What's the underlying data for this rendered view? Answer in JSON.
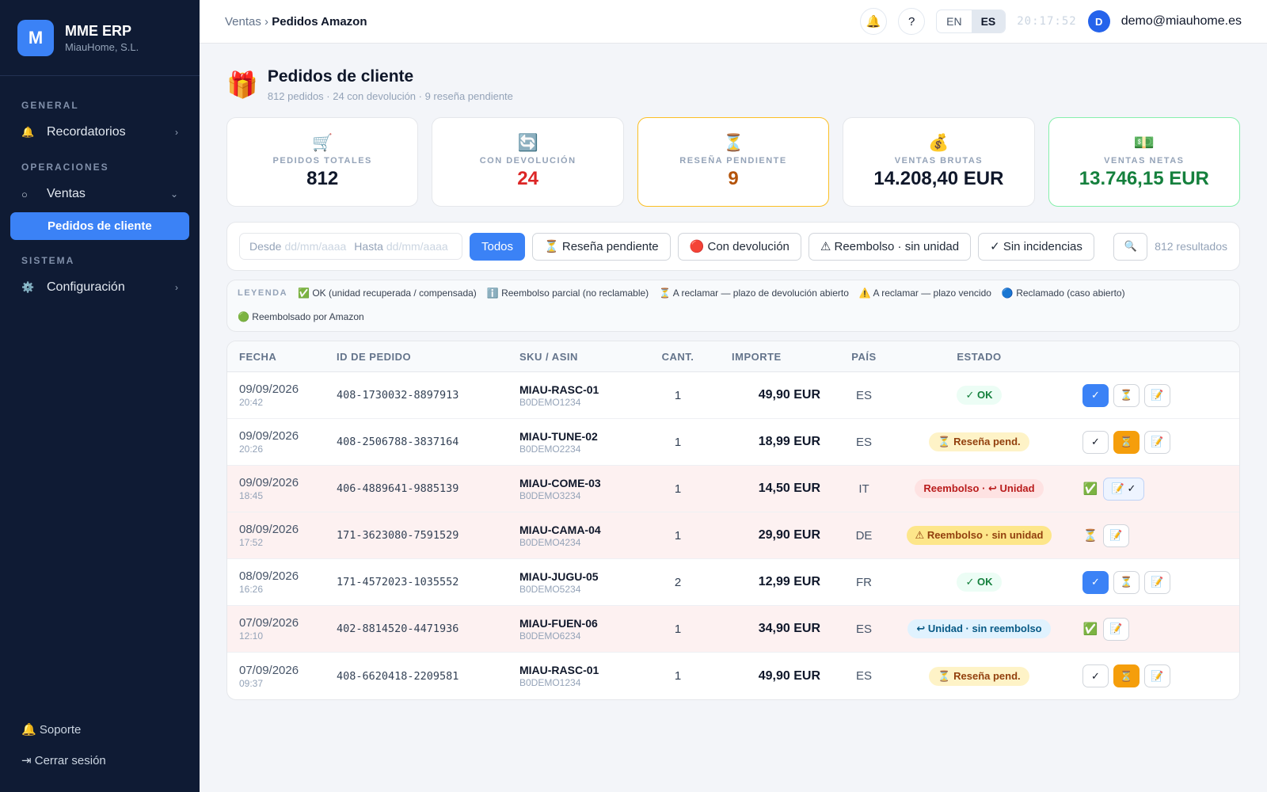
{
  "brand": {
    "logo": "M",
    "name": "MME ERP",
    "company": "MiauHome, S.L."
  },
  "sidebar": {
    "general": "GENERAL",
    "reminders": {
      "icon": "🔔",
      "label": "Recordatorios",
      "chev": "›"
    },
    "operations": "OPERACIONES",
    "sales": {
      "icon": "○",
      "label": "Ventas",
      "chev": "⌄"
    },
    "orders": "Pedidos de cliente",
    "system": "SISTEMA",
    "config": {
      "icon": "⚙️",
      "label": "Configuración",
      "chev": "›"
    },
    "support": "🔔 Soporte",
    "logout": "⇥ Cerrar sesión"
  },
  "topbar": {
    "crumb_parent": "Ventas",
    "crumb_sep": " › ",
    "crumb_current": "Pedidos Amazon",
    "bell": "🔔",
    "help": "?",
    "lang_en": "EN",
    "lang_es": "ES",
    "clock": "20:17:52",
    "avatar": "D",
    "email": "demo@miauhome.es"
  },
  "page": {
    "icon": "🎁",
    "title": "Pedidos de cliente",
    "subtitle": "812 pedidos · 24 con devolución · 9 reseña pendiente"
  },
  "kpis": [
    {
      "icon": "🛒",
      "label": "PEDIDOS TOTALES",
      "value": "812",
      "color": "#0f172a"
    },
    {
      "icon": "🔄",
      "label": "CON DEVOLUCIÓN",
      "value": "24",
      "color": "#dc2626"
    },
    {
      "icon": "⏳",
      "label": "RESEÑA PENDIENTE",
      "value": "9",
      "color": "#b45309"
    },
    {
      "icon": "💰",
      "label": "VENTAS BRUTAS",
      "value": "14.208,40 EUR",
      "color": "#0f172a"
    },
    {
      "icon": "💵",
      "label": "VENTAS NETAS",
      "value": "13.746,15 EUR",
      "color": "#15803d"
    }
  ],
  "filters": {
    "from_label": "Desde",
    "from_ph": "dd/mm/aaaa",
    "to_label": "Hasta",
    "to_ph": "dd/mm/aaaa",
    "all": "Todos",
    "review": "⏳ Reseña pendiente",
    "returns": "🔴 Con devolución",
    "refund": "⚠ Reembolso · sin unidad",
    "clean": "✓ Sin incidencias",
    "search_icon": "🔍",
    "results": "812 resultados"
  },
  "legend": {
    "title": "LEYENDA",
    "items": [
      "✅ OK (unidad recuperada / compensada)",
      "ℹ️ Reembolso parcial (no reclamable)",
      "⏳ A reclamar — plazo de devolución abierto",
      "⚠️ A reclamar — plazo vencido",
      "🔵 Reclamado (caso abierto)",
      "🟢 Reembolsado por Amazon"
    ]
  },
  "table": {
    "headers": {
      "date": "FECHA",
      "order": "ID DE PEDIDO",
      "sku": "SKU / ASIN",
      "qty": "CANT.",
      "amount": "IMPORTE",
      "country": "PAÍS",
      "status": "ESTADO"
    },
    "rows": [
      {
        "date": "09/09/2026",
        "time": "20:42",
        "order": "408-1730032-8897913",
        "sku": "MIAU-RASC-01",
        "asin": "B0DEMO1234",
        "qty": "1",
        "amount": "49,90 EUR",
        "country": "ES",
        "status": "✓ OK",
        "kind": "ok",
        "actions": [
          {
            "t": "✓",
            "s": "blue"
          },
          {
            "t": "⏳",
            "s": ""
          },
          {
            "t": "📝",
            "s": ""
          }
        ]
      },
      {
        "date": "09/09/2026",
        "time": "20:26",
        "order": "408-2506788-3837164",
        "sku": "MIAU-TUNE-02",
        "asin": "B0DEMO2234",
        "qty": "1",
        "amount": "18,99 EUR",
        "country": "ES",
        "status": "⏳ Reseña pend.",
        "kind": "rev",
        "actions": [
          {
            "t": "✓",
            "s": ""
          },
          {
            "t": "⏳",
            "s": "orange"
          },
          {
            "t": "📝",
            "s": ""
          }
        ]
      },
      {
        "date": "09/09/2026",
        "time": "18:45",
        "order": "406-4889641-9885139",
        "sku": "MIAU-COME-03",
        "asin": "B0DEMO3234",
        "qty": "1",
        "amount": "14,50 EUR",
        "country": "IT",
        "status": "Reembolso · ↩ Unidad",
        "kind": "red",
        "pink": true,
        "actions": [
          {
            "t": "✅",
            "s": "plain"
          },
          {
            "t": "📝 ✓",
            "s": "wide"
          }
        ]
      },
      {
        "date": "08/09/2026",
        "time": "17:52",
        "order": "171-3623080-7591529",
        "sku": "MIAU-CAMA-04",
        "asin": "B0DEMO4234",
        "qty": "1",
        "amount": "29,90 EUR",
        "country": "DE",
        "status": "⚠ Reembolso · sin unidad",
        "kind": "warn",
        "pink": true,
        "actions": [
          {
            "t": "⏳",
            "s": "plain"
          },
          {
            "t": "📝",
            "s": ""
          }
        ]
      },
      {
        "date": "08/09/2026",
        "time": "16:26",
        "order": "171-4572023-1035552",
        "sku": "MIAU-JUGU-05",
        "asin": "B0DEMO5234",
        "qty": "2",
        "amount": "12,99 EUR",
        "country": "FR",
        "status": "✓ OK",
        "kind": "ok",
        "actions": [
          {
            "t": "✓",
            "s": "blue"
          },
          {
            "t": "⏳",
            "s": ""
          },
          {
            "t": "📝",
            "s": ""
          }
        ]
      },
      {
        "date": "07/09/2026",
        "time": "12:10",
        "order": "402-8814520-4471936",
        "sku": "MIAU-FUEN-06",
        "asin": "B0DEMO6234",
        "qty": "1",
        "amount": "34,90 EUR",
        "country": "ES",
        "status": "↩ Unidad · sin reembolso",
        "kind": "blue",
        "pink": true,
        "actions": [
          {
            "t": "✅",
            "s": "plain"
          },
          {
            "t": "📝",
            "s": ""
          }
        ]
      },
      {
        "date": "07/09/2026",
        "time": "09:37",
        "order": "408-6620418-2209581",
        "sku": "MIAU-RASC-01",
        "asin": "B0DEMO1234",
        "qty": "1",
        "amount": "49,90 EUR",
        "country": "ES",
        "status": "⏳ Reseña pend.",
        "kind": "rev",
        "actions": [
          {
            "t": "✓",
            "s": ""
          },
          {
            "t": "⏳",
            "s": "orange"
          },
          {
            "t": "📝",
            "s": ""
          }
        ]
      }
    ]
  }
}
